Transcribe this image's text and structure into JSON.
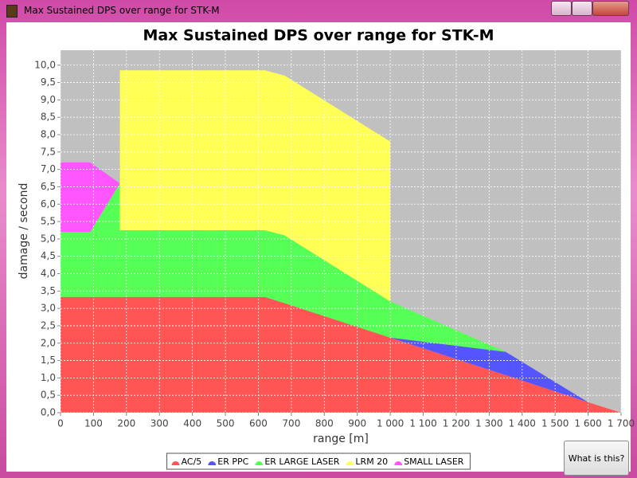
{
  "window": {
    "title": "Max Sustained DPS over range for STK-M"
  },
  "chart_data": {
    "type": "area",
    "title": "Max Sustained DPS over range for STK-M",
    "x_label": "range [m]",
    "y_label": "damage / second",
    "x": [
      0,
      90,
      180,
      180,
      620,
      680,
      1000,
      1000,
      1350,
      1600,
      1700
    ],
    "series": [
      {
        "name": "AC/5",
        "color": "#ff5555",
        "values": [
          3.33,
          3.33,
          3.33,
          3.33,
          3.33,
          3.15,
          2.16,
          2.16,
          1.08,
          0.3,
          0
        ]
      },
      {
        "name": "ER PPC",
        "color": "#5555ff",
        "values": [
          0,
          0,
          0,
          0,
          0,
          0,
          0,
          0,
          0.67,
          0,
          0
        ]
      },
      {
        "name": "ER LARGE LASER",
        "color": "#55ff55",
        "values": [
          1.87,
          1.87,
          3.27,
          1.92,
          1.92,
          1.95,
          1.04,
          1.04,
          0,
          0,
          0
        ]
      },
      {
        "name": "LRM 20",
        "color": "#ffff55",
        "values": [
          0,
          0,
          0,
          4.6,
          4.6,
          4.6,
          4.6,
          0,
          0,
          0,
          0
        ]
      },
      {
        "name": "SMALL LASER",
        "color": "#ff55ff",
        "values": [
          2.0,
          2.0,
          0,
          0,
          0,
          0,
          0,
          0,
          0,
          0,
          0
        ]
      }
    ],
    "stacked": true,
    "xlim": [
      0,
      1700
    ],
    "xticks": [
      0,
      100,
      200,
      300,
      400,
      500,
      600,
      700,
      800,
      900,
      {
        "value": 1000,
        "label": "1 000"
      },
      {
        "value": 1100,
        "label": "1 100"
      },
      {
        "value": 1200,
        "label": "1 200"
      },
      {
        "value": 1300,
        "label": "1 300"
      },
      {
        "value": 1400,
        "label": "1 400"
      },
      {
        "value": 1500,
        "label": "1 500"
      },
      {
        "value": 1600,
        "label": "1 600"
      },
      {
        "value": 1700,
        "label": "1 700"
      }
    ],
    "ylim": [
      0,
      10.43
    ],
    "yticks": [
      {
        "value": 0,
        "label": "0,0"
      },
      {
        "value": 0.5,
        "label": "0,5"
      },
      {
        "value": 1,
        "label": "1,0"
      },
      {
        "value": 1.5,
        "label": "1,5"
      },
      {
        "value": 2,
        "label": "2,0"
      },
      {
        "value": 2.5,
        "label": "2,5"
      },
      {
        "value": 3,
        "label": "3,0"
      },
      {
        "value": 3.5,
        "label": "3,5"
      },
      {
        "value": 4,
        "label": "4,0"
      },
      {
        "value": 4.5,
        "label": "4,5"
      },
      {
        "value": 5,
        "label": "5,0"
      },
      {
        "value": 5.5,
        "label": "5,5"
      },
      {
        "value": 6,
        "label": "6,0"
      },
      {
        "value": 6.5,
        "label": "6,5"
      },
      {
        "value": 7,
        "label": "7,0"
      },
      {
        "value": 7.5,
        "label": "7,5"
      },
      {
        "value": 8,
        "label": "8,0"
      },
      {
        "value": 8.5,
        "label": "8,5"
      },
      {
        "value": 9,
        "label": "9,0"
      },
      {
        "value": 9.5,
        "label": "9,5"
      },
      {
        "value": 10,
        "label": "10,0"
      }
    ],
    "grid": true,
    "legend": "bottom",
    "plot_background": "#c0c0c0"
  },
  "button": {
    "label": "What is this?"
  }
}
